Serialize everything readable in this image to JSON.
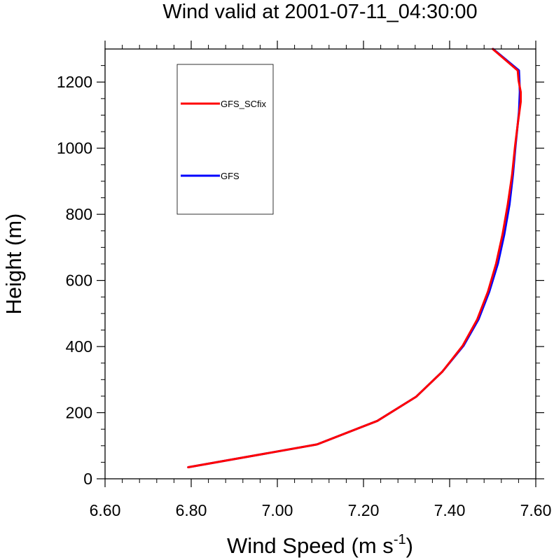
{
  "chart_data": {
    "type": "line",
    "title": "Wind valid at 2001-07-11_04:30:00",
    "xlabel": "Wind Speed (m s",
    "xlabel_superscript": "-1",
    "xlabel_suffix": ")",
    "ylabel": "Height (m)",
    "xlim": [
      6.6,
      7.6
    ],
    "ylim": [
      0,
      1300
    ],
    "xticks": [
      6.6,
      6.8,
      7.0,
      7.2,
      7.4,
      7.6
    ],
    "xtick_labels": [
      "6.60",
      "6.80",
      "7.00",
      "7.20",
      "7.40",
      "7.60"
    ],
    "yticks": [
      0,
      200,
      400,
      600,
      800,
      1000,
      1200
    ],
    "ytick_labels": [
      "0",
      "200",
      "400",
      "600",
      "800",
      "1000",
      "1200"
    ],
    "grid": false,
    "legend_position": "top-left",
    "series": [
      {
        "name": "GFS",
        "color": "#0000ff",
        "x": [
          6.793,
          7.092,
          7.232,
          7.322,
          7.383,
          7.432,
          7.467,
          7.492,
          7.512,
          7.527,
          7.539,
          7.547,
          7.553,
          7.558,
          7.561,
          7.562,
          7.563,
          7.562,
          7.561,
          7.501
        ],
        "y": [
          35,
          104,
          175,
          248,
          324,
          402,
          482,
          566,
          651,
          740,
          830,
          920,
          1008,
          1072,
          1110,
          1140,
          1170,
          1205,
          1235,
          1300
        ]
      },
      {
        "name": "GFS_SCfix",
        "color": "#ff0000",
        "x": [
          6.793,
          7.092,
          7.232,
          7.322,
          7.383,
          7.43,
          7.464,
          7.489,
          7.508,
          7.523,
          7.535,
          7.545,
          7.552,
          7.558,
          7.562,
          7.565,
          7.565,
          7.56,
          7.558,
          7.5
        ],
        "y": [
          35,
          104,
          175,
          248,
          324,
          402,
          482,
          566,
          651,
          740,
          830,
          920,
          1008,
          1072,
          1110,
          1140,
          1170,
          1205,
          1235,
          1300
        ]
      }
    ],
    "legend": [
      {
        "name": "GFS_SCfix",
        "color": "#ff0000"
      },
      {
        "name": "GFS",
        "color": "#0000ff"
      }
    ]
  }
}
